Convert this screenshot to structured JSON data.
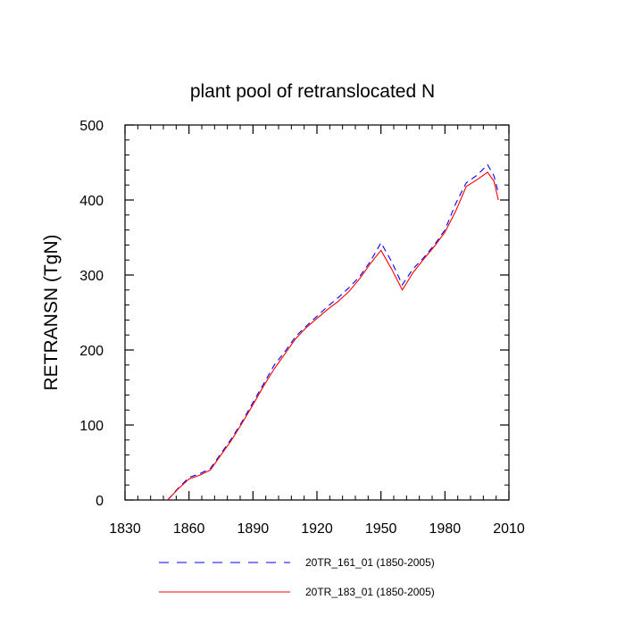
{
  "chart_data": {
    "type": "line",
    "title": "plant pool of retranslocated N",
    "xlabel": "",
    "ylabel": "RETRANSN  (TgN)",
    "xlim": [
      1830,
      2010
    ],
    "ylim": [
      0,
      500
    ],
    "xticks": [
      1830,
      1860,
      1890,
      1920,
      1950,
      1980,
      2010
    ],
    "yticks": [
      0,
      100,
      200,
      300,
      400,
      500
    ],
    "grid": false,
    "legend_position": "bottom",
    "series": [
      {
        "name": "20TR_161_01 (1850-2005)",
        "color": "#0000ff",
        "style": "dashed",
        "x": [
          1850,
          1855,
          1860,
          1865,
          1870,
          1875,
          1880,
          1885,
          1890,
          1895,
          1900,
          1905,
          1910,
          1915,
          1920,
          1925,
          1930,
          1935,
          1940,
          1945,
          1950,
          1955,
          1960,
          1965,
          1970,
          1975,
          1980,
          1985,
          1990,
          1995,
          2000,
          2003,
          2005
        ],
        "values": [
          0,
          16,
          30,
          35,
          42,
          62,
          82,
          105,
          130,
          155,
          180,
          198,
          218,
          232,
          245,
          258,
          270,
          283,
          298,
          318,
          343,
          318,
          287,
          308,
          323,
          340,
          360,
          395,
          423,
          433,
          447,
          432,
          410
        ]
      },
      {
        "name": "20TR_183_01 (1850-2005)",
        "color": "#ff0000",
        "style": "solid",
        "x": [
          1850,
          1855,
          1860,
          1865,
          1870,
          1875,
          1880,
          1885,
          1890,
          1895,
          1900,
          1905,
          1910,
          1915,
          1920,
          1925,
          1930,
          1935,
          1940,
          1945,
          1950,
          1955,
          1960,
          1965,
          1970,
          1975,
          1980,
          1985,
          1990,
          1995,
          2000,
          2003,
          2005
        ],
        "values": [
          0,
          15,
          28,
          33,
          40,
          60,
          80,
          103,
          127,
          152,
          175,
          195,
          215,
          230,
          242,
          254,
          265,
          278,
          295,
          315,
          333,
          308,
          280,
          303,
          321,
          338,
          357,
          385,
          418,
          427,
          437,
          425,
          400
        ]
      }
    ]
  }
}
